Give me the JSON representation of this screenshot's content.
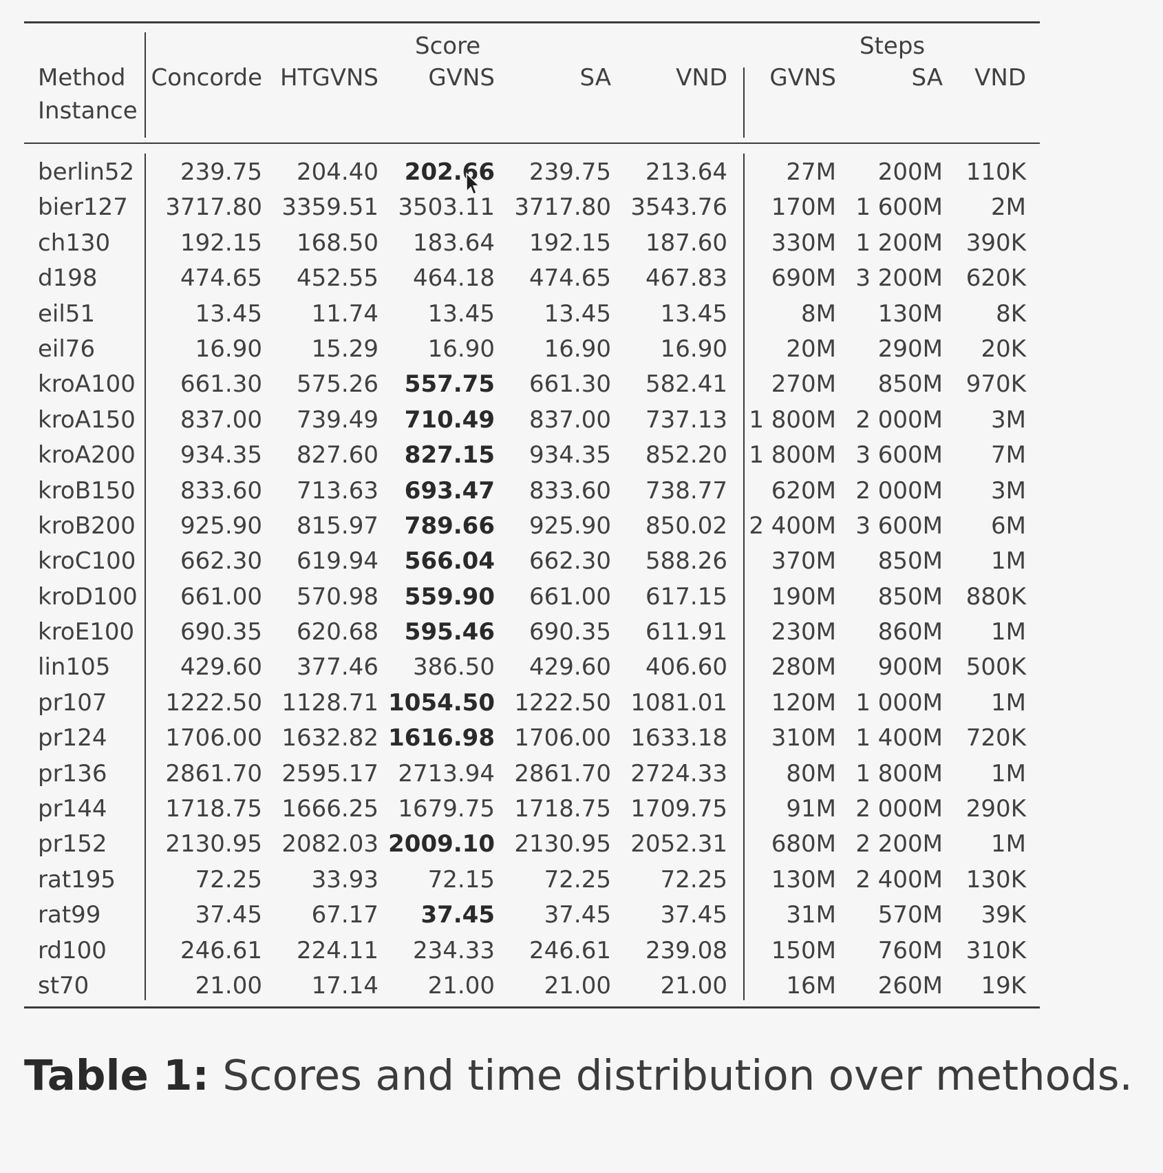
{
  "table": {
    "group_score": "Score",
    "group_steps": "Steps",
    "header_method": "Method",
    "header_instance": "Instance",
    "columns": [
      "Concorde",
      "HTGVNS",
      "GVNS",
      "SA",
      "VND",
      "GVNS",
      "SA",
      "VND"
    ],
    "rows": [
      {
        "instance": "berlin52",
        "values": [
          "239.75",
          "204.40",
          "202.66",
          "239.75",
          "213.64",
          "27M",
          "200M",
          "110K"
        ],
        "bold": 2
      },
      {
        "instance": "bier127",
        "values": [
          "3717.80",
          "3359.51",
          "3503.11",
          "3717.80",
          "3543.76",
          "170M",
          "1 600M",
          "2M"
        ]
      },
      {
        "instance": "ch130",
        "values": [
          "192.15",
          "168.50",
          "183.64",
          "192.15",
          "187.60",
          "330M",
          "1 200M",
          "390K"
        ]
      },
      {
        "instance": "d198",
        "values": [
          "474.65",
          "452.55",
          "464.18",
          "474.65",
          "467.83",
          "690M",
          "3 200M",
          "620K"
        ]
      },
      {
        "instance": "eil51",
        "values": [
          "13.45",
          "11.74",
          "13.45",
          "13.45",
          "13.45",
          "8M",
          "130M",
          "8K"
        ]
      },
      {
        "instance": "eil76",
        "values": [
          "16.90",
          "15.29",
          "16.90",
          "16.90",
          "16.90",
          "20M",
          "290M",
          "20K"
        ]
      },
      {
        "instance": "kroA100",
        "values": [
          "661.30",
          "575.26",
          "557.75",
          "661.30",
          "582.41",
          "270M",
          "850M",
          "970K"
        ],
        "bold": 2
      },
      {
        "instance": "kroA150",
        "values": [
          "837.00",
          "739.49",
          "710.49",
          "837.00",
          "737.13",
          "1 800M",
          "2 000M",
          "3M"
        ],
        "bold": 2
      },
      {
        "instance": "kroA200",
        "values": [
          "934.35",
          "827.60",
          "827.15",
          "934.35",
          "852.20",
          "1 800M",
          "3 600M",
          "7M"
        ],
        "bold": 2
      },
      {
        "instance": "kroB150",
        "values": [
          "833.60",
          "713.63",
          "693.47",
          "833.60",
          "738.77",
          "620M",
          "2 000M",
          "3M"
        ],
        "bold": 2
      },
      {
        "instance": "kroB200",
        "values": [
          "925.90",
          "815.97",
          "789.66",
          "925.90",
          "850.02",
          "2 400M",
          "3 600M",
          "6M"
        ],
        "bold": 2
      },
      {
        "instance": "kroC100",
        "values": [
          "662.30",
          "619.94",
          "566.04",
          "662.30",
          "588.26",
          "370M",
          "850M",
          "1M"
        ],
        "bold": 2
      },
      {
        "instance": "kroD100",
        "values": [
          "661.00",
          "570.98",
          "559.90",
          "661.00",
          "617.15",
          "190M",
          "850M",
          "880K"
        ],
        "bold": 2
      },
      {
        "instance": "kroE100",
        "values": [
          "690.35",
          "620.68",
          "595.46",
          "690.35",
          "611.91",
          "230M",
          "860M",
          "1M"
        ],
        "bold": 2
      },
      {
        "instance": "lin105",
        "values": [
          "429.60",
          "377.46",
          "386.50",
          "429.60",
          "406.60",
          "280M",
          "900M",
          "500K"
        ]
      },
      {
        "instance": "pr107",
        "values": [
          "1222.50",
          "1128.71",
          "1054.50",
          "1222.50",
          "1081.01",
          "120M",
          "1 000M",
          "1M"
        ],
        "bold": 2
      },
      {
        "instance": "pr124",
        "values": [
          "1706.00",
          "1632.82",
          "1616.98",
          "1706.00",
          "1633.18",
          "310M",
          "1 400M",
          "720K"
        ],
        "bold": 2
      },
      {
        "instance": "pr136",
        "values": [
          "2861.70",
          "2595.17",
          "2713.94",
          "2861.70",
          "2724.33",
          "80M",
          "1 800M",
          "1M"
        ]
      },
      {
        "instance": "pr144",
        "values": [
          "1718.75",
          "1666.25",
          "1679.75",
          "1718.75",
          "1709.75",
          "91M",
          "2 000M",
          "290K"
        ]
      },
      {
        "instance": "pr152",
        "values": [
          "2130.95",
          "2082.03",
          "2009.10",
          "2130.95",
          "2052.31",
          "680M",
          "2 200M",
          "1M"
        ],
        "bold": 2
      },
      {
        "instance": "rat195",
        "values": [
          "72.25",
          "33.93",
          "72.15",
          "72.25",
          "72.25",
          "130M",
          "2 400M",
          "130K"
        ]
      },
      {
        "instance": "rat99",
        "values": [
          "37.45",
          "67.17",
          "37.45",
          "37.45",
          "37.45",
          "31M",
          "570M",
          "39K"
        ],
        "bold": 2
      },
      {
        "instance": "rd100",
        "values": [
          "246.61",
          "224.11",
          "234.33",
          "246.61",
          "239.08",
          "150M",
          "760M",
          "310K"
        ]
      },
      {
        "instance": "st70",
        "values": [
          "21.00",
          "17.14",
          "21.00",
          "21.00",
          "21.00",
          "16M",
          "260M",
          "19K"
        ]
      }
    ]
  },
  "caption": {
    "label": "Table 1:",
    "text": "Scores and time distribution over methods."
  }
}
